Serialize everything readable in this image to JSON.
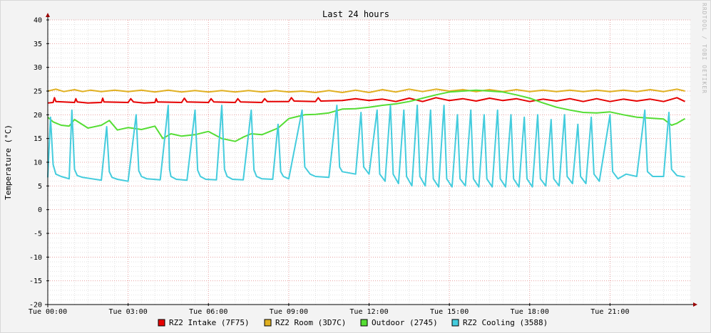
{
  "chart_data": {
    "type": "line",
    "title": "Last 24 hours",
    "xlabel": "",
    "ylabel": "Temperature (°C)",
    "watermark": "RRDTOOL / TOBI OETIKER",
    "xlim_hours": [
      0,
      24
    ],
    "ylim": [
      -20,
      40
    ],
    "grid": true,
    "legend_position": "bottom",
    "y_ticks": [
      40,
      35,
      30,
      25,
      20,
      15,
      10,
      5,
      0,
      -5,
      -10,
      -15,
      -20
    ],
    "x_ticks": [
      {
        "hour": 0,
        "label": "Tue 00:00"
      },
      {
        "hour": 3,
        "label": "Tue 03:00"
      },
      {
        "hour": 6,
        "label": "Tue 06:00"
      },
      {
        "hour": 9,
        "label": "Tue 09:00"
      },
      {
        "hour": 12,
        "label": "Tue 12:00"
      },
      {
        "hour": 15,
        "label": "Tue 15:00"
      },
      {
        "hour": 18,
        "label": "Tue 18:00"
      },
      {
        "hour": 21,
        "label": "Tue 21:00"
      }
    ],
    "series": [
      {
        "name": "RZ2 Intake (7F75)",
        "color": "#e60000",
        "x": [
          0,
          0.2,
          0.25,
          0.3,
          1.0,
          1.05,
          1.1,
          1.5,
          2.0,
          2.05,
          2.1,
          3.0,
          3.1,
          3.2,
          3.6,
          4.0,
          4.05,
          4.1,
          5.0,
          5.1,
          5.2,
          6.0,
          6.1,
          6.2,
          7.0,
          7.1,
          7.2,
          8.0,
          8.1,
          8.2,
          9.0,
          9.1,
          9.2,
          10.0,
          10.1,
          10.2,
          11.0,
          11.5,
          12.0,
          12.5,
          13.0,
          13.5,
          14.0,
          14.5,
          15.0,
          15.5,
          16.0,
          16.5,
          17.0,
          17.5,
          18.0,
          18.5,
          19.0,
          19.5,
          20.0,
          20.5,
          21.0,
          21.5,
          22.0,
          22.5,
          23.0,
          23.5,
          23.8
        ],
        "y": [
          22.5,
          22.6,
          23.6,
          22.8,
          22.6,
          23.4,
          22.7,
          22.5,
          22.6,
          23.5,
          22.7,
          22.6,
          23.4,
          22.7,
          22.5,
          22.6,
          23.4,
          22.7,
          22.6,
          23.5,
          22.7,
          22.6,
          23.4,
          22.7,
          22.6,
          23.4,
          22.7,
          22.6,
          23.4,
          22.8,
          22.8,
          23.6,
          22.9,
          22.8,
          23.6,
          22.9,
          23.0,
          23.4,
          23.0,
          23.3,
          22.8,
          23.5,
          22.8,
          23.6,
          23.0,
          23.4,
          22.9,
          23.5,
          23.0,
          23.4,
          22.8,
          23.3,
          22.9,
          23.4,
          22.8,
          23.4,
          22.8,
          23.3,
          22.9,
          23.3,
          22.8,
          23.6,
          22.8
        ]
      },
      {
        "name": "RZ2 Room (3D7C)",
        "color": "#e0b020",
        "x": [
          0,
          0.3,
          0.6,
          1.0,
          1.3,
          1.6,
          2.0,
          2.5,
          3.0,
          3.5,
          4.0,
          4.5,
          5.0,
          5.5,
          6.0,
          6.5,
          7.0,
          7.5,
          8.0,
          8.5,
          9.0,
          9.5,
          10.0,
          10.5,
          11.0,
          11.5,
          12.0,
          12.5,
          13.0,
          13.5,
          14.0,
          14.5,
          15.0,
          15.5,
          16.0,
          16.5,
          17.0,
          17.5,
          18.0,
          18.5,
          19.0,
          19.5,
          20.0,
          20.5,
          21.0,
          21.5,
          22.0,
          22.5,
          23.0,
          23.5,
          23.8
        ],
        "y": [
          25.0,
          25.4,
          24.9,
          25.3,
          24.9,
          25.2,
          24.9,
          25.2,
          24.9,
          25.2,
          24.8,
          25.2,
          24.8,
          25.1,
          24.8,
          25.1,
          24.8,
          25.1,
          24.8,
          25.1,
          24.8,
          25.0,
          24.7,
          25.1,
          24.7,
          25.2,
          24.7,
          25.3,
          24.8,
          25.4,
          24.9,
          25.4,
          25.0,
          25.3,
          24.9,
          25.3,
          24.9,
          25.3,
          24.9,
          25.2,
          24.9,
          25.2,
          24.9,
          25.2,
          24.9,
          25.2,
          24.9,
          25.3,
          24.9,
          25.4,
          25.0
        ]
      },
      {
        "name": "Outdoor (2745)",
        "color": "#55dd33",
        "x": [
          0,
          0.2,
          0.5,
          0.8,
          1.0,
          1.5,
          2.0,
          2.3,
          2.6,
          3.0,
          3.5,
          4.0,
          4.3,
          4.6,
          5.0,
          5.5,
          6.0,
          6.5,
          7.0,
          7.3,
          7.6,
          8.0,
          8.3,
          8.6,
          9.0,
          9.3,
          9.6,
          10.0,
          10.5,
          11.0,
          11.5,
          12.0,
          12.5,
          13.0,
          13.5,
          14.0,
          14.5,
          15.0,
          15.5,
          16.0,
          16.5,
          17.0,
          17.5,
          18.0,
          18.5,
          19.0,
          19.5,
          20.0,
          20.5,
          21.0,
          21.5,
          22.0,
          22.5,
          23.0,
          23.3,
          23.5,
          23.8
        ],
        "y": [
          19.5,
          18.5,
          17.8,
          17.6,
          19.0,
          17.2,
          17.8,
          18.8,
          16.8,
          17.3,
          16.9,
          17.6,
          15.0,
          16.0,
          15.5,
          15.8,
          16.5,
          15.0,
          14.4,
          15.3,
          16.0,
          15.8,
          16.5,
          17.2,
          19.2,
          19.6,
          20.0,
          20.1,
          20.4,
          21.2,
          21.3,
          21.6,
          22.0,
          22.3,
          22.8,
          23.5,
          24.2,
          24.8,
          25.0,
          25.2,
          25.0,
          24.8,
          24.2,
          23.5,
          22.5,
          21.6,
          21.0,
          20.5,
          20.4,
          20.6,
          20.0,
          19.5,
          19.3,
          19.1,
          17.8,
          18.2,
          19.2
        ]
      },
      {
        "name": "RZ2 Cooling (3588)",
        "color": "#44ccdd",
        "x": [
          0,
          0.1,
          0.2,
          0.3,
          0.5,
          0.8,
          0.9,
          1.0,
          1.1,
          1.3,
          2.0,
          2.2,
          2.3,
          2.4,
          2.6,
          3.0,
          3.3,
          3.4,
          3.5,
          3.7,
          4.2,
          4.5,
          4.55,
          4.6,
          4.8,
          5.2,
          5.5,
          5.6,
          5.7,
          5.9,
          6.3,
          6.5,
          6.6,
          6.7,
          6.9,
          7.3,
          7.6,
          7.7,
          7.8,
          8.0,
          8.4,
          8.6,
          8.7,
          8.8,
          9.0,
          9.5,
          9.6,
          9.8,
          10.0,
          10.5,
          10.8,
          10.9,
          11.0,
          11.5,
          11.7,
          11.8,
          12.0,
          12.3,
          12.4,
          12.6,
          12.8,
          12.9,
          13.1,
          13.3,
          13.4,
          13.6,
          13.8,
          13.9,
          14.1,
          14.3,
          14.4,
          14.6,
          14.8,
          14.9,
          15.1,
          15.3,
          15.4,
          15.6,
          15.8,
          15.9,
          16.1,
          16.3,
          16.4,
          16.6,
          16.8,
          16.9,
          17.1,
          17.3,
          17.4,
          17.6,
          17.8,
          17.9,
          18.1,
          18.3,
          18.4,
          18.6,
          18.8,
          18.9,
          19.1,
          19.3,
          19.4,
          19.6,
          19.8,
          19.9,
          20.1,
          20.3,
          20.4,
          20.6,
          21.0,
          21.1,
          21.3,
          21.6,
          22.0,
          22.3,
          22.4,
          22.6,
          23.0,
          23.2,
          23.3,
          23.5,
          23.8
        ],
        "y": [
          6.8,
          19.5,
          9.5,
          7.5,
          7.0,
          6.5,
          21.0,
          8.5,
          7.2,
          6.8,
          6.2,
          17.5,
          8.0,
          6.8,
          6.4,
          6.0,
          20.0,
          8.2,
          7.0,
          6.5,
          6.3,
          22.0,
          8.5,
          7.0,
          6.4,
          6.2,
          21.0,
          8.3,
          7.0,
          6.4,
          6.3,
          22.0,
          8.5,
          7.0,
          6.4,
          6.3,
          21.0,
          8.4,
          7.0,
          6.5,
          6.4,
          18.0,
          8.0,
          7.0,
          6.5,
          21.0,
          9.0,
          7.5,
          7.0,
          6.8,
          22.0,
          9.0,
          8.0,
          7.5,
          20.5,
          9.0,
          7.5,
          21.0,
          7.5,
          6.0,
          22.0,
          7.5,
          5.5,
          21.0,
          7.0,
          5.0,
          22.0,
          7.0,
          5.0,
          21.0,
          6.5,
          4.8,
          22.0,
          6.5,
          4.8,
          20.0,
          6.5,
          5.0,
          21.0,
          6.5,
          4.8,
          20.0,
          6.5,
          4.8,
          21.0,
          6.5,
          4.8,
          20.0,
          6.5,
          4.8,
          19.5,
          6.5,
          4.8,
          20.0,
          6.5,
          5.0,
          19.0,
          6.5,
          5.0,
          20.0,
          7.0,
          5.5,
          18.0,
          7.0,
          5.5,
          19.5,
          7.5,
          6.0,
          20.0,
          8.0,
          6.5,
          7.5,
          7.0,
          21.0,
          8.0,
          7.0,
          7.0,
          20.5,
          8.5,
          7.2,
          6.9
        ]
      }
    ]
  }
}
